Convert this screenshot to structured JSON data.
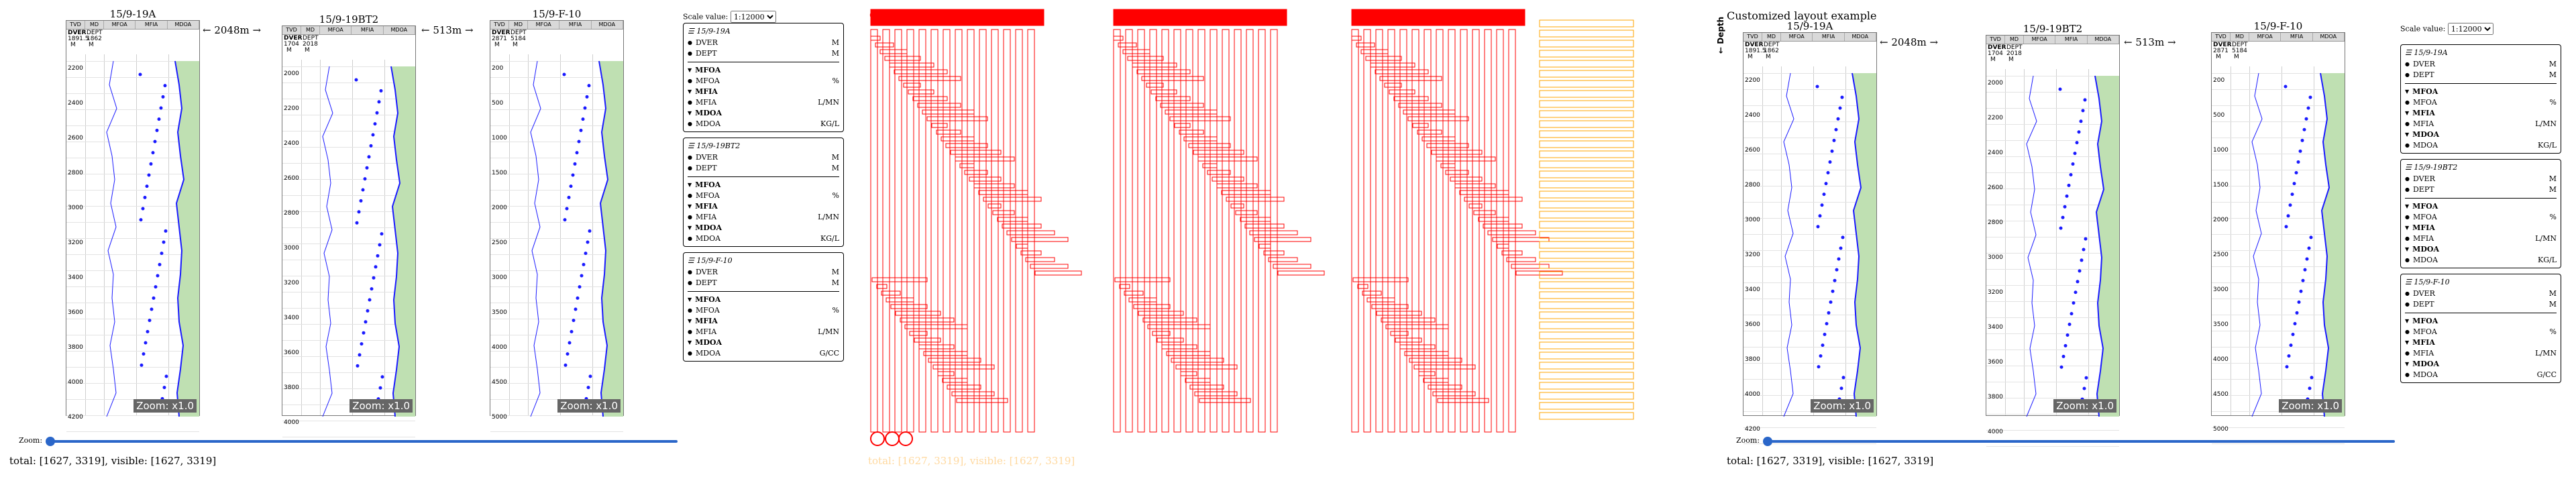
{
  "wells": [
    {
      "name": "15/9-19A",
      "dver_label": "DVER",
      "dver_value": "1891.5",
      "dver_unit": "M",
      "dept_label": "DEPT",
      "dept_value": "1862",
      "dept_unit": "M"
    },
    {
      "name": "15/9-19BT2",
      "dver_label": "DVER",
      "dver_value": "1704",
      "dver_unit": "M",
      "dept_label": "DEPT",
      "dept_value": "2018",
      "dept_unit": "M"
    },
    {
      "name": "15/9-F-10",
      "dver_label": "DVER",
      "dver_value": "2871",
      "dver_unit": "M",
      "dept_label": "DEPT",
      "dept_value": "5184",
      "dept_unit": "M"
    }
  ],
  "columns": [
    "TVD",
    "MD",
    "MFOA",
    "MFIA",
    "MDOA"
  ],
  "spacers": [
    "← 2048m →",
    "← 513m →"
  ],
  "zoom_badge": "Zoom: x1.0",
  "zoom_label": "Zoom:",
  "status": "total: [1627, 3319], visible: [1627, 3319]",
  "scale_label": "Scale value:",
  "scale_value": "1:12000",
  "custom_title": "Customized layout example",
  "depth_axis": "← Depth",
  "ticks": [
    [
      "2200",
      "2400",
      "2600",
      "2800",
      "3000",
      "3200",
      "3400",
      "3600",
      "3800",
      "4000",
      "4200"
    ],
    [
      "2000",
      "2200",
      "2400",
      "2600",
      "2800",
      "3000",
      "3200",
      "3400",
      "3600",
      "3800",
      "4000"
    ],
    [
      "200",
      "500",
      "1000",
      "1500",
      "2000",
      "2500",
      "3000",
      "3500",
      "4000",
      "4500",
      "5000"
    ]
  ],
  "legend": [
    {
      "well": "15/9-19A",
      "rows": [
        [
          "DVER",
          "M"
        ],
        [
          "DEPT",
          "M"
        ]
      ],
      "logs": [
        [
          "MFOA",
          ""
        ],
        [
          "MFOA",
          "%"
        ],
        [
          "MFIA",
          ""
        ],
        [
          "MFIA",
          "L/MN"
        ],
        [
          "MDOA",
          ""
        ],
        [
          "MDOA",
          "KG/L"
        ]
      ]
    },
    {
      "well": "15/9-19BT2",
      "rows": [
        [
          "DVER",
          "M"
        ],
        [
          "DEPT",
          "M"
        ]
      ],
      "logs": [
        [
          "MFOA",
          ""
        ],
        [
          "MFOA",
          "%"
        ],
        [
          "MFIA",
          ""
        ],
        [
          "MFIA",
          "L/MN"
        ],
        [
          "MDOA",
          ""
        ],
        [
          "MDOA",
          "KG/L"
        ]
      ]
    },
    {
      "well": "15/9-F-10",
      "rows": [
        [
          "DVER",
          "M"
        ],
        [
          "DEPT",
          "M"
        ]
      ],
      "logs": [
        [
          "MFOA",
          ""
        ],
        [
          "MFOA",
          "%"
        ],
        [
          "MFIA",
          ""
        ],
        [
          "MFIA",
          "L/MN"
        ],
        [
          "MDOA",
          ""
        ],
        [
          "MDOA",
          "G/CC"
        ]
      ]
    }
  ],
  "overlay_title": "Customized layout example",
  "colors": {
    "track_line": "#1a1aff",
    "fill": "#bfe0b2",
    "grid": "#cfcfcf",
    "slider": "#2a66c9",
    "overlay_red": "#ff0000",
    "overlay_orange": "#ffa500"
  }
}
